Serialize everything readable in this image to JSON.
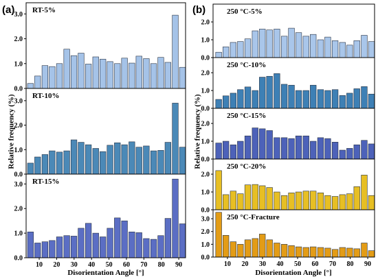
{
  "chart_data": [
    {
      "type": "bar",
      "panel_label": "(a)",
      "xlabel": "Disorientation Angle [°]",
      "ylabel": "Relative frequency (%)",
      "xlim": [
        2.5,
        93.9
      ],
      "xtick_labels": [
        "10",
        "20",
        "30",
        "40",
        "50",
        "60",
        "70",
        "80",
        "90"
      ],
      "x": [
        5.0,
        9.1,
        13.3,
        17.4,
        21.6,
        25.8,
        29.9,
        34.0,
        38.2,
        42.4,
        46.5,
        50.6,
        54.8,
        58.9,
        63.1,
        67.2,
        71.4,
        75.6,
        79.7,
        83.8,
        88.0,
        92.1
      ],
      "subplots": [
        {
          "title": "RT-5%",
          "ylim": [
            0,
            3.45
          ],
          "ytick_labels": [
            "0.0",
            "1.0",
            "2.0",
            "3.0"
          ],
          "color": "#a5c3e8",
          "values": [
            0.2,
            0.5,
            0.92,
            0.88,
            1.0,
            1.58,
            1.32,
            1.42,
            0.98,
            1.27,
            1.18,
            1.08,
            1.0,
            1.22,
            1.02,
            1.3,
            1.2,
            1.0,
            1.25,
            1.05,
            2.95,
            0.85
          ]
        },
        {
          "title": "RT-10%",
          "ylim": [
            0,
            3.5
          ],
          "ytick_labels": [
            "0.0",
            "1.0",
            "2.0",
            "3.0"
          ],
          "color": "#4b89b7",
          "values": [
            0.45,
            0.7,
            0.8,
            0.95,
            0.9,
            0.95,
            1.4,
            1.3,
            1.2,
            1.05,
            0.92,
            1.18,
            1.28,
            1.2,
            1.32,
            1.1,
            1.15,
            0.95,
            0.97,
            1.3,
            2.9,
            1.1
          ]
        },
        {
          "title": "RT-15%",
          "ylim": [
            0,
            3.4
          ],
          "ytick_labels": [
            "0.0",
            "1.0",
            "2.0",
            "3.0"
          ],
          "color": "#5b6ec4",
          "values": [
            1.05,
            0.6,
            0.65,
            0.7,
            0.85,
            0.9,
            0.88,
            1.2,
            1.4,
            1.0,
            0.85,
            1.2,
            1.62,
            1.5,
            1.05,
            1.02,
            0.78,
            0.75,
            0.9,
            1.6,
            3.2,
            1.38
          ]
        }
      ]
    },
    {
      "type": "bar",
      "panel_label": "(b)",
      "xlabel": "Disorientation Angle [°]",
      "ylabel": "Relative frequency (%)",
      "xlim": [
        1.8,
        93.9
      ],
      "xtick_labels": [
        "10",
        "20",
        "30",
        "40",
        "50",
        "60",
        "70",
        "80",
        "90"
      ],
      "x": [
        5.0,
        9.1,
        13.3,
        17.4,
        21.6,
        25.8,
        29.9,
        34.0,
        38.2,
        42.4,
        46.5,
        50.6,
        54.8,
        58.9,
        63.1,
        67.2,
        71.4,
        75.6,
        79.7,
        83.8,
        88.0,
        92.1
      ],
      "subplots": [
        {
          "title": "250 °C-5%",
          "ylim": [
            0,
            3.0
          ],
          "ytick_labels": [
            "0.0",
            "1.0",
            "2.0"
          ],
          "color": "#a9c6ea",
          "values": [
            0.3,
            0.6,
            0.85,
            0.9,
            1.05,
            1.5,
            1.6,
            1.55,
            1.6,
            1.2,
            1.65,
            1.4,
            1.2,
            1.3,
            1.0,
            1.15,
            0.95,
            0.85,
            0.7,
            0.95,
            1.25,
            0.9
          ]
        },
        {
          "title": "250 °C-10%",
          "ylim": [
            0,
            2.85
          ],
          "ytick_labels": [
            "0.0",
            "1.0",
            "2.0"
          ],
          "color": "#3e80b5",
          "values": [
            0.5,
            0.7,
            0.85,
            1.05,
            1.2,
            1.0,
            1.75,
            1.8,
            1.95,
            1.35,
            1.3,
            1.0,
            1.0,
            1.3,
            1.05,
            1.0,
            1.05,
            0.72,
            0.85,
            1.1,
            1.22,
            0.8
          ]
        },
        {
          "title": "250 °C-15%",
          "ylim": [
            0,
            2.85
          ],
          "ytick_labels": [
            "0.0",
            "1.0",
            "2.0"
          ],
          "color": "#4d62b9",
          "values": [
            0.9,
            1.0,
            0.8,
            1.0,
            1.3,
            1.75,
            1.7,
            1.6,
            1.2,
            1.2,
            1.15,
            1.3,
            1.3,
            1.0,
            1.2,
            1.15,
            0.95,
            0.5,
            0.6,
            0.8,
            1.05,
            0.85
          ]
        },
        {
          "title": "250 °C-20%",
          "ylim": [
            0,
            2.85
          ],
          "ytick_labels": [
            "0.0",
            "1.0",
            "2.0"
          ],
          "color": "#e7bf24",
          "values": [
            2.2,
            0.85,
            1.05,
            0.9,
            1.4,
            1.42,
            1.35,
            1.25,
            1.0,
            0.8,
            0.95,
            1.0,
            1.05,
            1.05,
            0.95,
            0.8,
            0.75,
            0.85,
            0.9,
            1.3,
            1.95,
            0.8
          ]
        },
        {
          "title": "250 °C-Fracture",
          "ylim": [
            0,
            3.7
          ],
          "ytick_labels": [
            "0.0",
            "1.0",
            "2.0",
            "3.0"
          ],
          "color": "#e39c16",
          "values": [
            3.5,
            1.7,
            1.2,
            1.0,
            1.35,
            1.45,
            1.8,
            1.35,
            1.1,
            1.0,
            0.9,
            0.8,
            0.75,
            0.8,
            0.75,
            0.7,
            0.6,
            0.75,
            0.7,
            0.65,
            1.1,
            0.5
          ]
        }
      ]
    }
  ]
}
